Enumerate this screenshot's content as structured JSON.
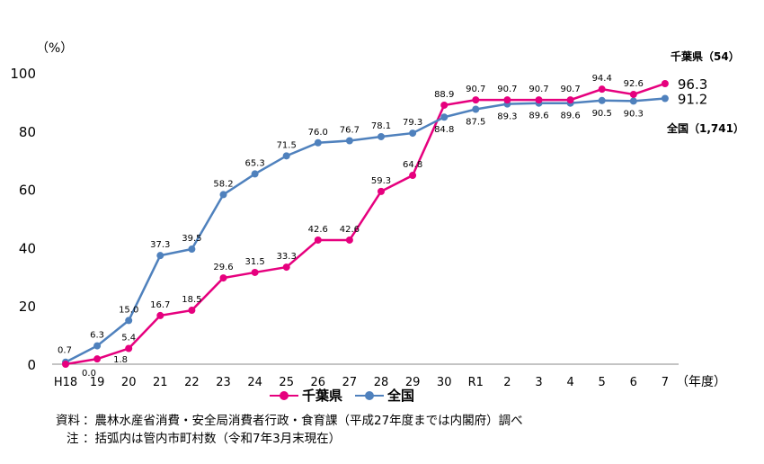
{
  "chart_data": {
    "type": "line",
    "unit_label": "（%）",
    "x_unit_label": "（年度）",
    "categories": [
      "H18",
      "19",
      "20",
      "21",
      "22",
      "23",
      "24",
      "25",
      "26",
      "27",
      "28",
      "29",
      "30",
      "R1",
      "2",
      "3",
      "4",
      "5",
      "6",
      "7"
    ],
    "ylim": [
      0,
      100
    ],
    "yticks": [
      0,
      20,
      40,
      60,
      80,
      100
    ],
    "grid": false,
    "legend_position": "bottom-center",
    "series": [
      {
        "name": "千葉県",
        "color": "#e6007e",
        "values": [
          0.0,
          1.8,
          5.4,
          16.7,
          18.5,
          29.6,
          31.5,
          33.3,
          42.6,
          42.6,
          59.3,
          64.8,
          88.9,
          90.7,
          90.7,
          90.7,
          90.7,
          94.4,
          92.6,
          96.3
        ],
        "labels": [
          "0.0",
          "1.8",
          "5.4",
          "16.7",
          "18.5",
          "29.6",
          "31.5",
          "33.3",
          "42.6",
          "42.6",
          "59.3",
          "64.8",
          "88.9",
          "90.7",
          "90.7",
          "90.7",
          "90.7",
          "94.4",
          "92.6",
          "96.3"
        ],
        "end_note": "千葉県（54）"
      },
      {
        "name": "全国",
        "color": "#4f81bd",
        "values": [
          0.7,
          6.3,
          15.0,
          37.3,
          39.5,
          58.2,
          65.3,
          71.5,
          76.0,
          76.7,
          78.1,
          79.3,
          84.8,
          87.5,
          89.3,
          89.6,
          89.6,
          90.5,
          90.3,
          91.2
        ],
        "labels": [
          "0.7",
          "6.3",
          "15.0",
          "37.3",
          "39.5",
          "58.2",
          "65.3",
          "71.5",
          "76.0",
          "76.7",
          "78.1",
          "79.3",
          "84.8",
          "87.5",
          "89.3",
          "89.6",
          "89.6",
          "90.5",
          "90.3",
          "91.2"
        ],
        "end_note": "全国（1,741）"
      }
    ]
  },
  "notes": [
    {
      "key": "資料",
      "text": "：農林水産省消費・安全局消費者行政・食育課（平成27年度までは内閣府）調べ"
    },
    {
      "key": "注",
      "text": "：括弧内は管内市町村数（令和7年3月末現在）"
    }
  ]
}
